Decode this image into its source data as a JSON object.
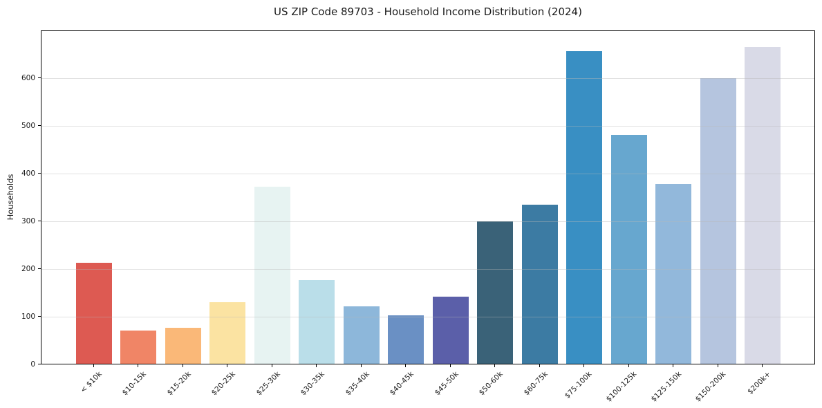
{
  "chart_data": {
    "type": "bar",
    "title": "US ZIP Code 89703 - Household Income Distribution (2024)",
    "xlabel": "",
    "ylabel": "Households",
    "categories": [
      "< $10k",
      "$10-15k",
      "$15-20k",
      "$20-25k",
      "$25-30k",
      "$30-35k",
      "$35-40k",
      "$40-45k",
      "$45-50k",
      "$50-60k",
      "$60-75k",
      "$75-100k",
      "$100-125k",
      "$125-150k",
      "$150-200k",
      "$200k+"
    ],
    "values": [
      212,
      69,
      76,
      129,
      371,
      176,
      121,
      101,
      140,
      299,
      334,
      655,
      480,
      377,
      598,
      664
    ],
    "bar_colors": [
      "#dd5a52",
      "#f08566",
      "#fab878",
      "#fbe3a2",
      "#e7f3f2",
      "#badee9",
      "#8db7da",
      "#6a90c4",
      "#5b5fa9",
      "#3a6278",
      "#3c7ba3",
      "#398fc3",
      "#67a7cf",
      "#92b8db",
      "#b5c5df",
      "#d9dae7"
    ],
    "ylim": [
      0,
      700
    ],
    "yticks": [
      0,
      100,
      200,
      300,
      400,
      500,
      600
    ],
    "grid": true,
    "legend": "none"
  }
}
